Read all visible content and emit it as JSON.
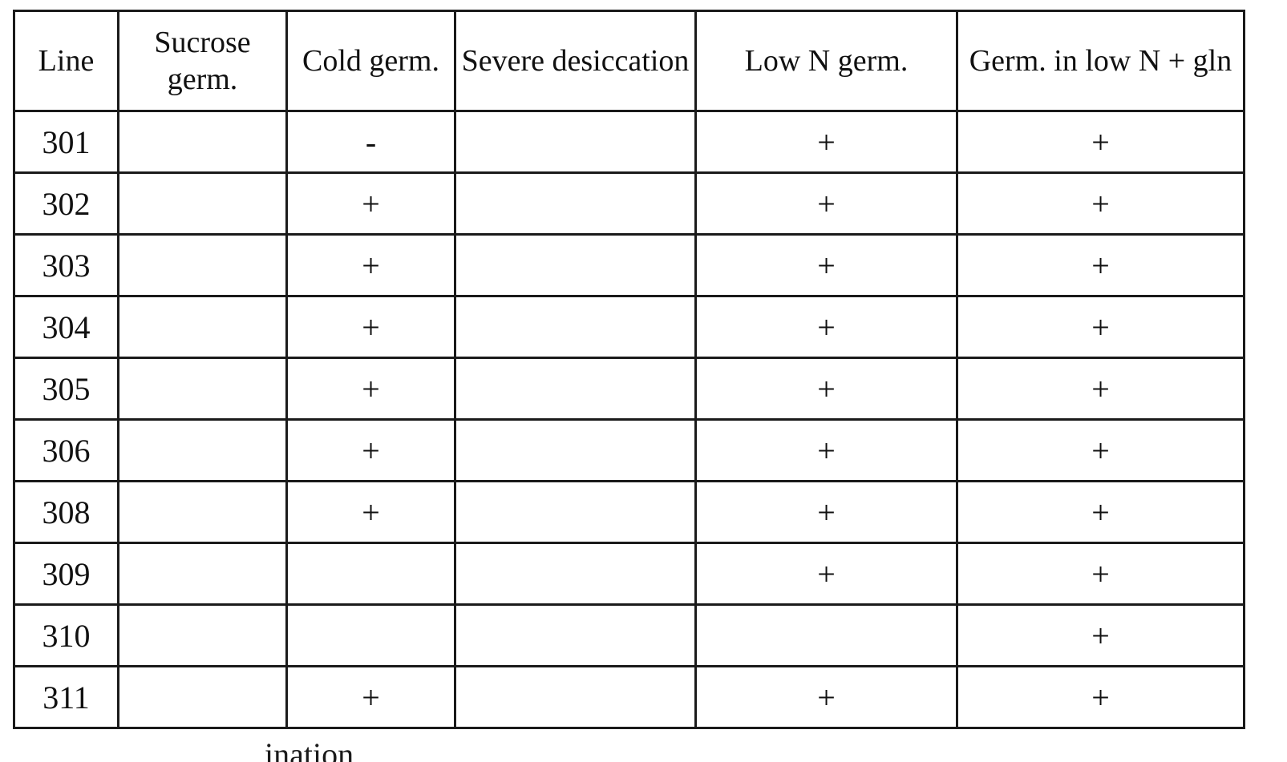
{
  "table": {
    "headers": [
      {
        "key": "line",
        "label": "Line"
      },
      {
        "key": "sucrose",
        "label": "Sucrose germ."
      },
      {
        "key": "cold",
        "label": "Cold germ."
      },
      {
        "key": "severe",
        "label": "Severe desiccation"
      },
      {
        "key": "lown",
        "label": "Low N germ."
      },
      {
        "key": "gln",
        "label": "Germ. in low N + gln"
      }
    ],
    "rows": [
      {
        "line": "301",
        "sucrose": "",
        "cold": "-",
        "severe": "",
        "lown": "+",
        "gln": "+"
      },
      {
        "line": "302",
        "sucrose": "",
        "cold": "+",
        "severe": "",
        "lown": "+",
        "gln": "+"
      },
      {
        "line": "303",
        "sucrose": "",
        "cold": "+",
        "severe": "",
        "lown": "+",
        "gln": "+"
      },
      {
        "line": "304",
        "sucrose": "",
        "cold": "+",
        "severe": "",
        "lown": "+",
        "gln": "+"
      },
      {
        "line": "305",
        "sucrose": "",
        "cold": "+",
        "severe": "",
        "lown": "+",
        "gln": "+"
      },
      {
        "line": "306",
        "sucrose": "",
        "cold": "+",
        "severe": "",
        "lown": "+",
        "gln": "+"
      },
      {
        "line": "308",
        "sucrose": "",
        "cold": "+",
        "severe": "",
        "lown": "+",
        "gln": "+"
      },
      {
        "line": "309",
        "sucrose": "",
        "cold": "",
        "severe": "",
        "lown": "+",
        "gln": "+"
      },
      {
        "line": "310",
        "sucrose": "",
        "cold": "",
        "severe": "",
        "lown": "",
        "gln": "+"
      },
      {
        "line": "311",
        "sucrose": "",
        "cold": "+",
        "severe": "",
        "lown": "+",
        "gln": "+"
      }
    ]
  },
  "footer": {
    "fragment": "ination"
  }
}
